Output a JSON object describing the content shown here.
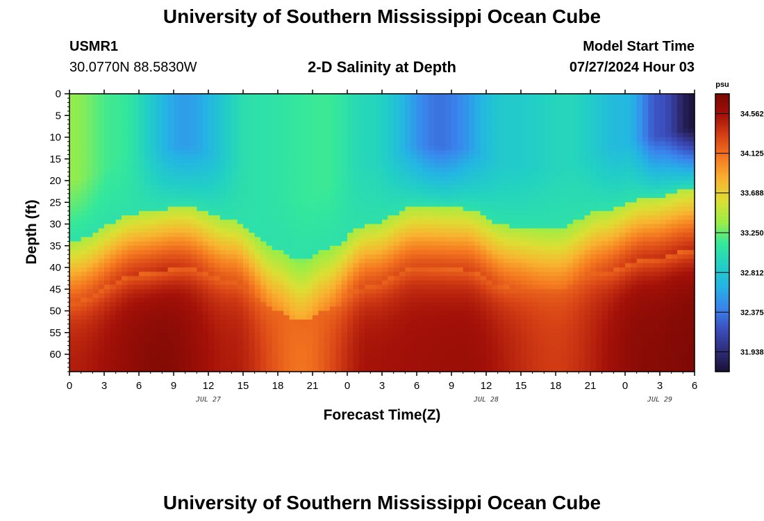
{
  "page": {
    "title": "University of Southern Mississippi Ocean Cube",
    "station_id": "USMR1",
    "station_coords": "30.0770N  88.5830W",
    "plot_title": "2-D Salinity at Depth",
    "model_start_label": "Model Start Time",
    "model_start_value": "07/27/2024 Hour 03",
    "footer_title": "University of Southern Mississippi Ocean Cube"
  },
  "chart_data": {
    "type": "heatmap",
    "title": "2-D Salinity at Depth",
    "xlabel": "Forecast Time(Z)",
    "ylabel": "Depth (ft)",
    "x_hours_range": [
      0,
      54
    ],
    "x_tick_labels": [
      "0",
      "3",
      "6",
      "9",
      "12",
      "15",
      "18",
      "21",
      "0",
      "3",
      "6",
      "9",
      "12",
      "15",
      "18",
      "21",
      "0",
      "3",
      "6"
    ],
    "date_labels": [
      {
        "text": "JUL 27",
        "at_tick": 4
      },
      {
        "text": "JUL 28",
        "at_tick": 12
      },
      {
        "text": "JUL 29",
        "at_tick": 17
      }
    ],
    "y_range": [
      0,
      64
    ],
    "y_ticks": [
      0,
      5,
      10,
      15,
      20,
      25,
      30,
      35,
      40,
      45,
      50,
      55,
      60
    ],
    "colorbar": {
      "unit": "psu",
      "range": [
        31.72,
        34.78
      ],
      "ticks": [
        31.938,
        32.375,
        32.812,
        33.25,
        33.688,
        34.125,
        34.562
      ],
      "colors": [
        "#1a1235",
        "#2f2d7a",
        "#3b4fbf",
        "#3a85ee",
        "#24b4e4",
        "#22d0c4",
        "#35e89a",
        "#9ced45",
        "#dcdf34",
        "#f8b430",
        "#f57a20",
        "#d84316",
        "#a41108",
        "#7a0804"
      ]
    },
    "halocline_depth_ft": [
      {
        "t": 0,
        "depth": 40
      },
      {
        "t": 6,
        "depth": 33.5
      },
      {
        "t": 10,
        "depth": 32
      },
      {
        "t": 14,
        "depth": 35
      },
      {
        "t": 18,
        "depth": 42
      },
      {
        "t": 20,
        "depth": 44.5
      },
      {
        "t": 22,
        "depth": 42
      },
      {
        "t": 26,
        "depth": 36
      },
      {
        "t": 30,
        "depth": 32
      },
      {
        "t": 34,
        "depth": 32.5
      },
      {
        "t": 38,
        "depth": 36.5
      },
      {
        "t": 42,
        "depth": 37
      },
      {
        "t": 46,
        "depth": 33
      },
      {
        "t": 50,
        "depth": 30
      },
      {
        "t": 54,
        "depth": 28
      }
    ],
    "surface_salinity_psu": [
      {
        "t": 0,
        "value": 33.35
      },
      {
        "t": 4,
        "value": 33.15
      },
      {
        "t": 10,
        "value": 32.55
      },
      {
        "t": 16,
        "value": 33.05
      },
      {
        "t": 22,
        "value": 33.15
      },
      {
        "t": 26,
        "value": 32.95
      },
      {
        "t": 32,
        "value": 32.35
      },
      {
        "t": 38,
        "value": 32.85
      },
      {
        "t": 43,
        "value": 32.95
      },
      {
        "t": 48,
        "value": 32.7
      },
      {
        "t": 51,
        "value": 32.2
      },
      {
        "t": 54,
        "value": 31.75
      }
    ],
    "bottom_salinity_psu": [
      {
        "t": 0,
        "value": 34.5
      },
      {
        "t": 8,
        "value": 34.72
      },
      {
        "t": 14,
        "value": 34.5
      },
      {
        "t": 20,
        "value": 34.1
      },
      {
        "t": 26,
        "value": 34.55
      },
      {
        "t": 34,
        "value": 34.6
      },
      {
        "t": 42,
        "value": 34.35
      },
      {
        "t": 50,
        "value": 34.7
      },
      {
        "t": 54,
        "value": 34.75
      }
    ]
  }
}
